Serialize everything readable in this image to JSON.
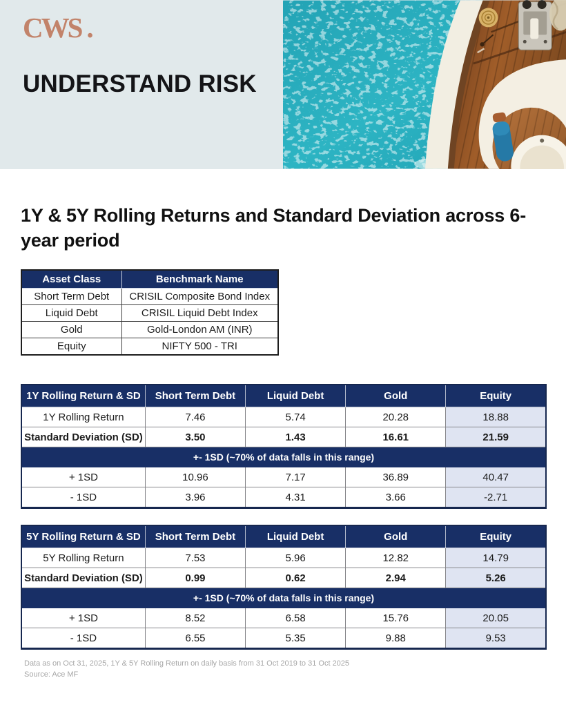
{
  "header": {
    "logo_text": "CWS",
    "logo_dot": ".",
    "title": "UNDERSTAND RISK",
    "photo_description": "aerial view of yacht bow on turquoise sea"
  },
  "main": {
    "heading": "1Y & 5Y Rolling Returns and Standard Deviation across 6-year period"
  },
  "benchmark_table": {
    "headers": [
      "Asset Class",
      "Benchmark Name"
    ],
    "rows": [
      [
        "Short Term Debt",
        "CRISIL Composite Bond Index"
      ],
      [
        "Liquid Debt",
        "CRISIL Liquid Debt Index"
      ],
      [
        "Gold",
        "Gold-London AM (INR)"
      ],
      [
        "Equity",
        "NIFTY 500 - TRI"
      ]
    ]
  },
  "table_1y": {
    "header": [
      "1Y Rolling Return & SD",
      "Short Term Debt",
      "Liquid Debt",
      "Gold",
      "Equity"
    ],
    "rows_top": [
      {
        "label": "1Y Rolling Return",
        "bold": false,
        "values": [
          "7.46",
          "5.74",
          "20.28",
          "18.88"
        ]
      },
      {
        "label": "Standard Deviation (SD)",
        "bold": true,
        "values": [
          "3.50",
          "1.43",
          "16.61",
          "21.59"
        ]
      }
    ],
    "band": "+- 1SD (~70% of data falls in this range)",
    "rows_bottom": [
      {
        "label": "+ 1SD",
        "bold": false,
        "values": [
          "10.96",
          "7.17",
          "36.89",
          "40.47"
        ]
      },
      {
        "label": "- 1SD",
        "bold": false,
        "values": [
          "3.96",
          "4.31",
          "3.66",
          "-2.71"
        ]
      }
    ]
  },
  "table_5y": {
    "header": [
      "5Y Rolling Return & SD",
      "Short Term Debt",
      "Liquid Debt",
      "Gold",
      "Equity"
    ],
    "rows_top": [
      {
        "label": "5Y Rolling Return",
        "bold": false,
        "values": [
          "7.53",
          "5.96",
          "12.82",
          "14.79"
        ]
      },
      {
        "label": "Standard Deviation (SD)",
        "bold": true,
        "values": [
          "0.99",
          "0.62",
          "2.94",
          "5.26"
        ]
      }
    ],
    "band": "+- 1SD (~70% of data falls in this range)",
    "rows_bottom": [
      {
        "label": "+ 1SD",
        "bold": false,
        "values": [
          "8.52",
          "6.58",
          "15.76",
          "20.05"
        ]
      },
      {
        "label": "- 1SD",
        "bold": false,
        "values": [
          "6.55",
          "5.35",
          "9.88",
          "9.53"
        ]
      }
    ]
  },
  "footer": {
    "line1": "Data as on Oct 31, 2025, 1Y & 5Y Rolling Return on daily basis from 31 Oct 2019 to 31 Oct 2025",
    "line2": "Source: Ace MF"
  },
  "colors": {
    "navy": "#182f66",
    "equity_bg": "#dfe4f2",
    "hero_bg": "#e1e9eb",
    "logo": "#c2836a",
    "water": "#2bb0c0"
  }
}
